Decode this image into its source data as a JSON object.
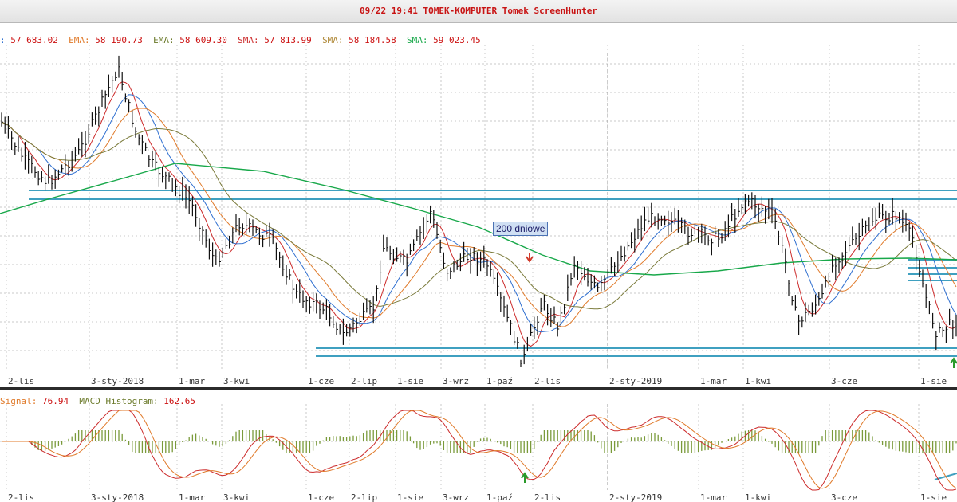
{
  "window": {
    "title": "09/22 19:41 TOMEK-KOMPUTER Tomek ScreenHunter"
  },
  "main_legend": [
    {
      "label": ":",
      "value": "57 683.02",
      "color": "#2f6fd0"
    },
    {
      "label": "EMA:",
      "value": "58 190.73",
      "color": "#e07a2a"
    },
    {
      "label": "EMA:",
      "value": "58 609.30",
      "color": "#6b7a2a"
    },
    {
      "label": "SMA:",
      "value": "57 813.99",
      "color": "#cc2b2b"
    },
    {
      "label": "SMA:",
      "value": "58 184.58",
      "color": "#b08a3a"
    },
    {
      "label": "SMA:",
      "value": "59 023.45",
      "color": "#18a84a"
    }
  ],
  "macd_legend": [
    {
      "label": "Signal:",
      "value": "76.94",
      "color": "#e07a2a"
    },
    {
      "label": "MACD Histogram:",
      "value": "162.65",
      "color": "#6b7a2a"
    }
  ],
  "annotation": {
    "text": "200 dniowe"
  },
  "colors": {
    "price_bars": "#111111",
    "ma_blue": "#2f6fd0",
    "ma_red": "#cc2b2b",
    "ma_orange": "#e07a2a",
    "ma_olive": "#7a7a3a",
    "ma_green": "#18a84a",
    "support_lines": "#3fa0c0",
    "histogram": "#7a9a3a",
    "grid": "#c8c8c8",
    "signal_up": "#2a9a2a",
    "signal_down": "#d03a2a"
  },
  "chart_data": [
    {
      "type": "line",
      "title": "",
      "x_tick_labels": [
        "2-lis",
        "3-sty-2018",
        "1-mar",
        "3-kwi",
        "1-cze",
        "2-lip",
        "1-sie",
        "3-wrz",
        "1-paź",
        "2-lis",
        "2-sty-2019",
        "1-mar",
        "1-kwi",
        "3-cze",
        "1-sie"
      ],
      "description_series": "OHLC price bars with moving averages",
      "price_series": [
        {
          "x": "2-lis",
          "close": 59400
        },
        {
          "x": "3-sty-2018",
          "close": 62800
        },
        {
          "x": "1-mar",
          "close": 58000
        },
        {
          "x": "3-kwi",
          "close": 56800
        },
        {
          "x": "1-cze",
          "close": 54900
        },
        {
          "x": "2-lip",
          "close": 55200
        },
        {
          "x": "1-sie",
          "close": 57500
        },
        {
          "x": "3-wrz",
          "close": 56800
        },
        {
          "x": "1-paź",
          "close": 54500
        },
        {
          "x": "2-lis",
          "close": 55800
        },
        {
          "x": "2-sty-2019",
          "close": 57500
        },
        {
          "x": "1-mar",
          "close": 58000
        },
        {
          "x": "1-kwi",
          "close": 58400
        },
        {
          "x": "3-cze",
          "close": 57700
        },
        {
          "x": "1-sie",
          "close": 55000
        }
      ],
      "series": [
        {
          "name": "EMA",
          "last_value": 58190.73
        },
        {
          "name": "EMA",
          "last_value": 58609.3
        },
        {
          "name": "SMA",
          "last_value": 57813.99
        },
        {
          "name": "SMA",
          "last_value": 58184.58
        },
        {
          "name": "SMA",
          "last_value": 59023.45
        }
      ],
      "horizontal_levels": [
        "resistance ~59 300",
        "support ~54 800"
      ],
      "grid": true
    },
    {
      "type": "line",
      "title": "",
      "series": [
        {
          "name": "Signal",
          "last_value": 76.94
        },
        {
          "name": "MACD Histogram",
          "last_value": 162.65
        }
      ],
      "grid": true
    }
  ]
}
